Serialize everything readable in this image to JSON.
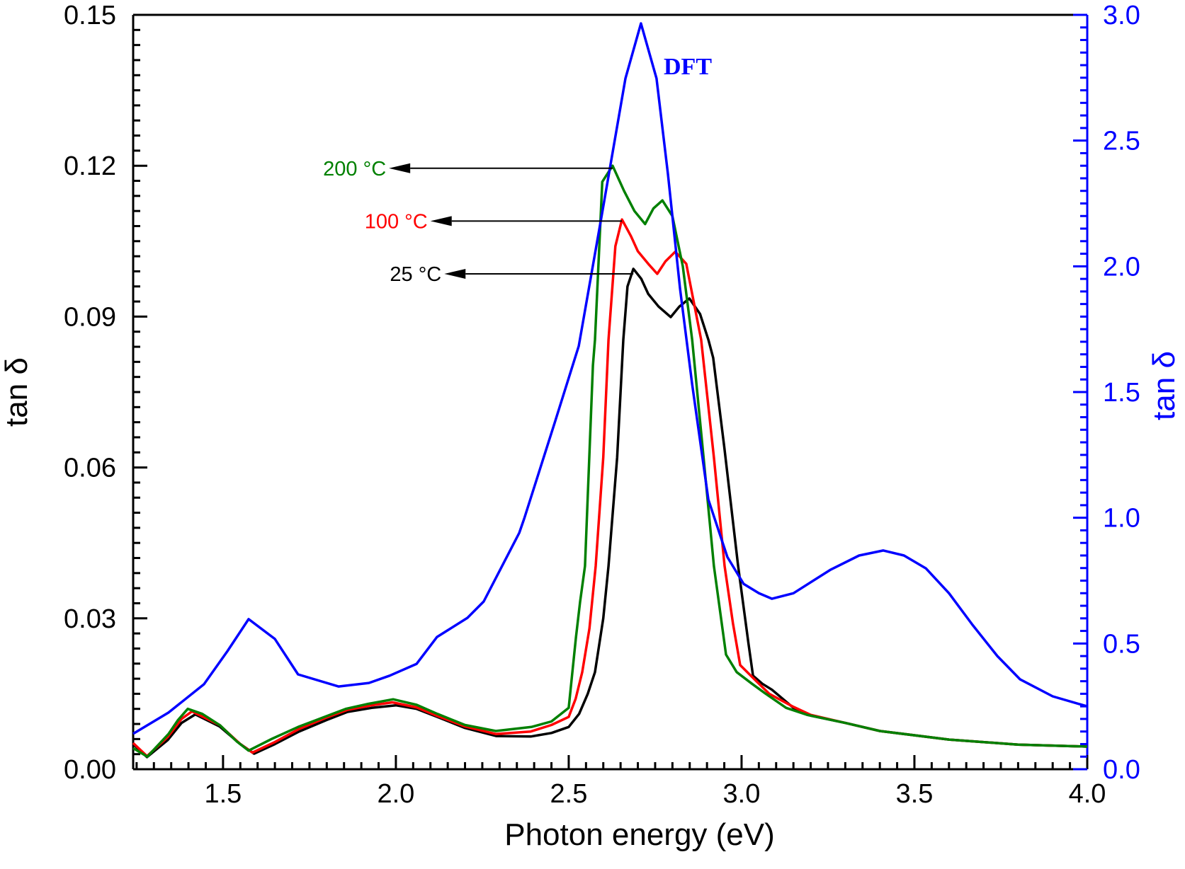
{
  "chart_data": {
    "type": "line",
    "title": "",
    "xlabel": "Photon energy (eV)",
    "ylabel_left": "tan δ",
    "ylabel_right": "tan δ",
    "xlim": [
      1.24,
      4.0
    ],
    "ylim_left": [
      0.0,
      0.15
    ],
    "ylim_right": [
      0.0,
      3.0
    ],
    "x_ticks": [
      1.5,
      2.0,
      2.5,
      3.0,
      3.5,
      4.0
    ],
    "x_tick_labels": [
      "1.5",
      "2.0",
      "2.5",
      "3.0",
      "3.5",
      "4.0"
    ],
    "y_left_ticks": [
      0.0,
      0.03,
      0.06,
      0.09,
      0.12,
      0.15
    ],
    "y_left_tick_labels": [
      "0.00",
      "0.03",
      "0.06",
      "0.09",
      "0.12",
      "0.15"
    ],
    "y_right_ticks": [
      0.0,
      0.5,
      1.0,
      1.5,
      2.0,
      2.5,
      3.0
    ],
    "y_right_tick_labels": [
      "0.0",
      "0.5",
      "1.0",
      "1.5",
      "2.0",
      "2.5",
      "3.0"
    ],
    "grid": false,
    "colors": {
      "axis_left": "#000000",
      "axis_right": "#0000ff"
    },
    "series": [
      {
        "name": "25 °C",
        "axis": "left",
        "color": "#000000",
        "x": [
          1.24,
          1.28,
          1.34,
          1.38,
          1.42,
          1.49,
          1.55,
          1.59,
          1.65,
          1.72,
          1.8,
          1.86,
          1.93,
          2.0,
          2.06,
          2.12,
          2.2,
          2.29,
          2.39,
          2.45,
          2.5,
          2.53,
          2.555,
          2.576,
          2.6,
          2.615,
          2.64,
          2.658,
          2.67,
          2.687,
          2.71,
          2.73,
          2.76,
          2.795,
          2.82,
          2.849,
          2.88,
          2.904,
          2.918,
          2.95,
          2.99,
          3.02,
          3.033,
          3.06,
          3.088,
          3.15,
          3.19,
          3.3,
          3.4,
          3.6,
          3.8,
          4.0
        ],
        "y": [
          0.005,
          0.0024,
          0.0058,
          0.0092,
          0.0109,
          0.0085,
          0.005,
          0.0031,
          0.005,
          0.0075,
          0.0098,
          0.0114,
          0.0122,
          0.0127,
          0.012,
          0.0104,
          0.0082,
          0.0066,
          0.0065,
          0.0072,
          0.0084,
          0.011,
          0.015,
          0.0193,
          0.03,
          0.0404,
          0.062,
          0.0854,
          0.096,
          0.0995,
          0.0975,
          0.0945,
          0.092,
          0.0899,
          0.092,
          0.0936,
          0.0905,
          0.0854,
          0.0818,
          0.064,
          0.0404,
          0.025,
          0.0186,
          0.017,
          0.0158,
          0.0122,
          0.0108,
          0.0092,
          0.0076,
          0.0059,
          0.0049,
          0.0045
        ]
      },
      {
        "name": "100 °C",
        "axis": "left",
        "color": "#ff0000",
        "x": [
          1.24,
          1.28,
          1.34,
          1.38,
          1.41,
          1.49,
          1.55,
          1.585,
          1.65,
          1.72,
          1.8,
          1.86,
          1.93,
          1.99,
          2.06,
          2.12,
          2.2,
          2.29,
          2.39,
          2.45,
          2.5,
          2.52,
          2.539,
          2.56,
          2.578,
          2.6,
          2.615,
          2.635,
          2.654,
          2.68,
          2.7,
          2.73,
          2.756,
          2.78,
          2.808,
          2.84,
          2.883,
          2.92,
          2.951,
          2.975,
          2.996,
          3.037,
          3.08,
          3.15,
          3.2,
          3.3,
          3.4,
          3.6,
          3.8,
          4.0
        ],
        "y": [
          0.0052,
          0.0026,
          0.0064,
          0.01,
          0.0115,
          0.0088,
          0.005,
          0.0033,
          0.0054,
          0.008,
          0.0103,
          0.0118,
          0.0127,
          0.0133,
          0.0123,
          0.0106,
          0.0085,
          0.007,
          0.0075,
          0.0088,
          0.0104,
          0.014,
          0.0193,
          0.028,
          0.0404,
          0.062,
          0.0854,
          0.104,
          0.1093,
          0.106,
          0.103,
          0.1005,
          0.0985,
          0.101,
          0.1029,
          0.1005,
          0.0854,
          0.062,
          0.0404,
          0.029,
          0.0207,
          0.0179,
          0.015,
          0.0124,
          0.0108,
          0.0092,
          0.0076,
          0.0059,
          0.0049,
          0.0045
        ]
      },
      {
        "name": "200 °C",
        "axis": "left",
        "color": "#008000",
        "x": [
          1.24,
          1.281,
          1.342,
          1.37,
          1.398,
          1.44,
          1.492,
          1.54,
          1.574,
          1.64,
          1.717,
          1.79,
          1.855,
          1.92,
          1.992,
          2.06,
          2.12,
          2.2,
          2.289,
          2.392,
          2.45,
          2.5,
          2.521,
          2.533,
          2.547,
          2.57,
          2.576,
          2.597,
          2.627,
          2.66,
          2.69,
          2.721,
          2.745,
          2.771,
          2.8,
          2.83,
          2.857,
          2.89,
          2.92,
          2.955,
          2.986,
          3.03,
          3.068,
          3.129,
          3.19,
          3.3,
          3.4,
          3.6,
          3.8,
          4.0
        ],
        "y": [
          0.0042,
          0.0025,
          0.007,
          0.0098,
          0.012,
          0.011,
          0.0087,
          0.0055,
          0.0037,
          0.006,
          0.0084,
          0.0103,
          0.012,
          0.013,
          0.0139,
          0.0128,
          0.011,
          0.0088,
          0.0076,
          0.0084,
          0.0095,
          0.0122,
          0.0263,
          0.0333,
          0.0404,
          0.0803,
          0.0854,
          0.1168,
          0.12,
          0.115,
          0.111,
          0.1084,
          0.1115,
          0.1131,
          0.11,
          0.1,
          0.0854,
          0.062,
          0.0404,
          0.0228,
          0.0193,
          0.017,
          0.0151,
          0.0122,
          0.0108,
          0.0092,
          0.0076,
          0.0059,
          0.0049,
          0.0045
        ]
      },
      {
        "name": "DFT",
        "axis": "right",
        "color": "#0000ff",
        "x": [
          1.24,
          1.342,
          1.445,
          1.513,
          1.574,
          1.65,
          1.717,
          1.834,
          1.922,
          1.982,
          2.06,
          2.119,
          2.207,
          2.254,
          2.357,
          2.371,
          2.459,
          2.529,
          2.597,
          2.664,
          2.709,
          2.754,
          2.787,
          2.822,
          2.857,
          2.904,
          2.959,
          3.006,
          3.05,
          3.088,
          3.15,
          3.258,
          3.34,
          3.41,
          3.47,
          3.533,
          3.6,
          3.668,
          3.74,
          3.806,
          3.9,
          4.0
        ],
        "y": [
          0.141,
          0.225,
          0.338,
          0.47,
          0.597,
          0.518,
          0.377,
          0.329,
          0.343,
          0.372,
          0.419,
          0.526,
          0.602,
          0.667,
          0.94,
          0.996,
          1.376,
          1.683,
          2.215,
          2.747,
          2.966,
          2.747,
          2.367,
          1.911,
          1.531,
          1.072,
          0.844,
          0.737,
          0.7,
          0.678,
          0.7,
          0.794,
          0.85,
          0.87,
          0.85,
          0.799,
          0.7,
          0.574,
          0.45,
          0.357,
          0.29,
          0.25
        ]
      }
    ],
    "annotations": [
      {
        "text": "200 °C",
        "color": "#008000",
        "arrow_from_x": 2.627,
        "y": 0.1195,
        "arrow_to_x": 1.98
      },
      {
        "text": "100 °C",
        "color": "#ff0000",
        "arrow_from_x": 2.654,
        "y": 0.109,
        "arrow_to_x": 2.1
      },
      {
        "text": "25 °C",
        "color": "#000000",
        "arrow_from_x": 2.687,
        "y": 0.0985,
        "arrow_to_x": 2.14
      },
      {
        "text": "DFT",
        "color": "#0000ff"
      }
    ]
  }
}
